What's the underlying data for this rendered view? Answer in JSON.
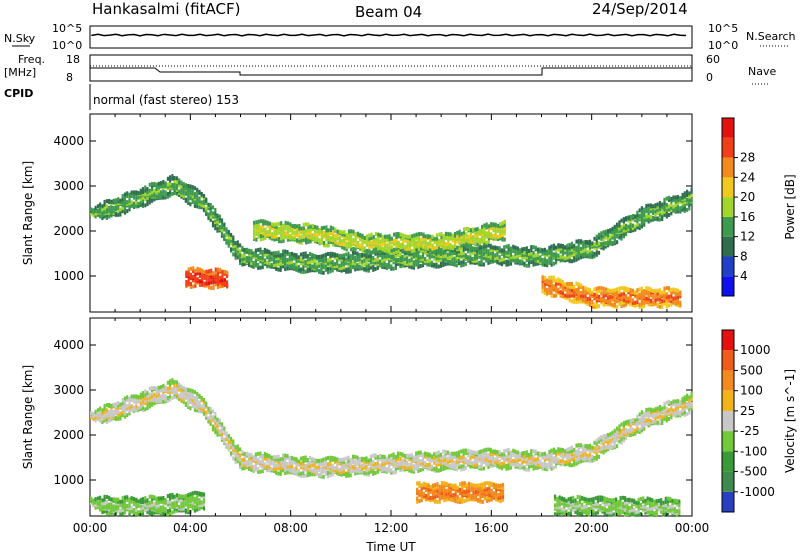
{
  "header": {
    "radar": "Hankasalmi (fitACF)",
    "beam": "Beam 04",
    "date": "24/Sep/2014"
  },
  "status": {
    "nsky_label": "N.Sky",
    "nsky_ticks": [
      "10^5",
      "10^0"
    ],
    "nsearch_label": "N.Search",
    "nsearch_ticks": [
      "10^5",
      "10^0"
    ],
    "freq_label": "Freq.",
    "freq_unit": "[MHz]",
    "freq_ticks": [
      "18",
      "8"
    ],
    "nave_label": "Nave",
    "nave_ticks": [
      "60",
      "0"
    ],
    "cpid_label": "CPID",
    "cpid_text": "normal (fast stereo) 153"
  },
  "chart_data": [
    {
      "type": "heatmap",
      "name": "power",
      "ylabel": "Slant Range [km]",
      "xlabel": "",
      "yticks": [
        "1000",
        "2000",
        "3000",
        "4000"
      ],
      "ylim": [
        200,
        4600
      ],
      "colorbar": {
        "label": "Power [dB]",
        "ticks": [
          "4",
          "8",
          "12",
          "16",
          "20",
          "24",
          "28"
        ],
        "colors": [
          "#1010ee",
          "#2040c8",
          "#2f6f50",
          "#3d9a4f",
          "#a3d62c",
          "#f2c81e",
          "#f28a1d",
          "#f0401a",
          "#e51010"
        ]
      },
      "bands": [
        {
          "t": [
            0,
            3.3,
            4.5,
            6,
            9,
            11,
            12,
            14,
            16,
            18,
            20,
            22,
            24
          ],
          "r": [
            2300,
            3000,
            2600,
            1400,
            1250,
            1300,
            1350,
            1400,
            1450,
            1400,
            1600,
            2300,
            2700
          ],
          "level": 3
        },
        {
          "t": [
            6.5,
            9,
            11,
            14,
            16.5
          ],
          "r": [
            2000,
            1900,
            1700,
            1700,
            2000
          ],
          "level": 4
        },
        {
          "t": [
            3.8,
            5.5
          ],
          "r": [
            950,
            900
          ],
          "level": 7
        },
        {
          "t": [
            18,
            20,
            23.5
          ],
          "r": [
            800,
            500,
            500
          ],
          "level": 6
        }
      ]
    },
    {
      "type": "heatmap",
      "name": "velocity",
      "ylabel": "Slant Range [km]",
      "xlabel": "Time UT",
      "xticks": [
        "00:00",
        "04:00",
        "08:00",
        "12:00",
        "16:00",
        "20:00",
        "00:00"
      ],
      "xlim": [
        0,
        24
      ],
      "yticks": [
        "1000",
        "2000",
        "3000",
        "4000"
      ],
      "ylim": [
        200,
        4600
      ],
      "colorbar": {
        "label": "Velocity [m s^-1]",
        "ticks": [
          "1000",
          "500",
          "100",
          "25",
          "-25",
          "-100",
          "-500",
          "-1000"
        ],
        "colors": [
          "#2a3fbf",
          "#3f8a4f",
          "#3a9a38",
          "#70c83a",
          "#c8c8c8",
          "#f2b21a",
          "#f28a1d",
          "#f05a1a",
          "#e51010"
        ]
      },
      "bands": [
        {
          "t": [
            0,
            3.3,
            4.5,
            6,
            9,
            11,
            12,
            14,
            16,
            18,
            20,
            22,
            24
          ],
          "r": [
            2300,
            3000,
            2600,
            1400,
            1250,
            1300,
            1350,
            1400,
            1450,
            1400,
            1600,
            2300,
            2700
          ],
          "level": 4
        },
        {
          "t": [
            13,
            16.5
          ],
          "r": [
            700,
            700
          ],
          "level": 6
        },
        {
          "t": [
            0,
            2,
            4.5
          ],
          "r": [
            400,
            380,
            500
          ],
          "level": 3
        },
        {
          "t": [
            18.5,
            23.5
          ],
          "r": [
            400,
            350
          ],
          "level": 3
        }
      ]
    }
  ]
}
